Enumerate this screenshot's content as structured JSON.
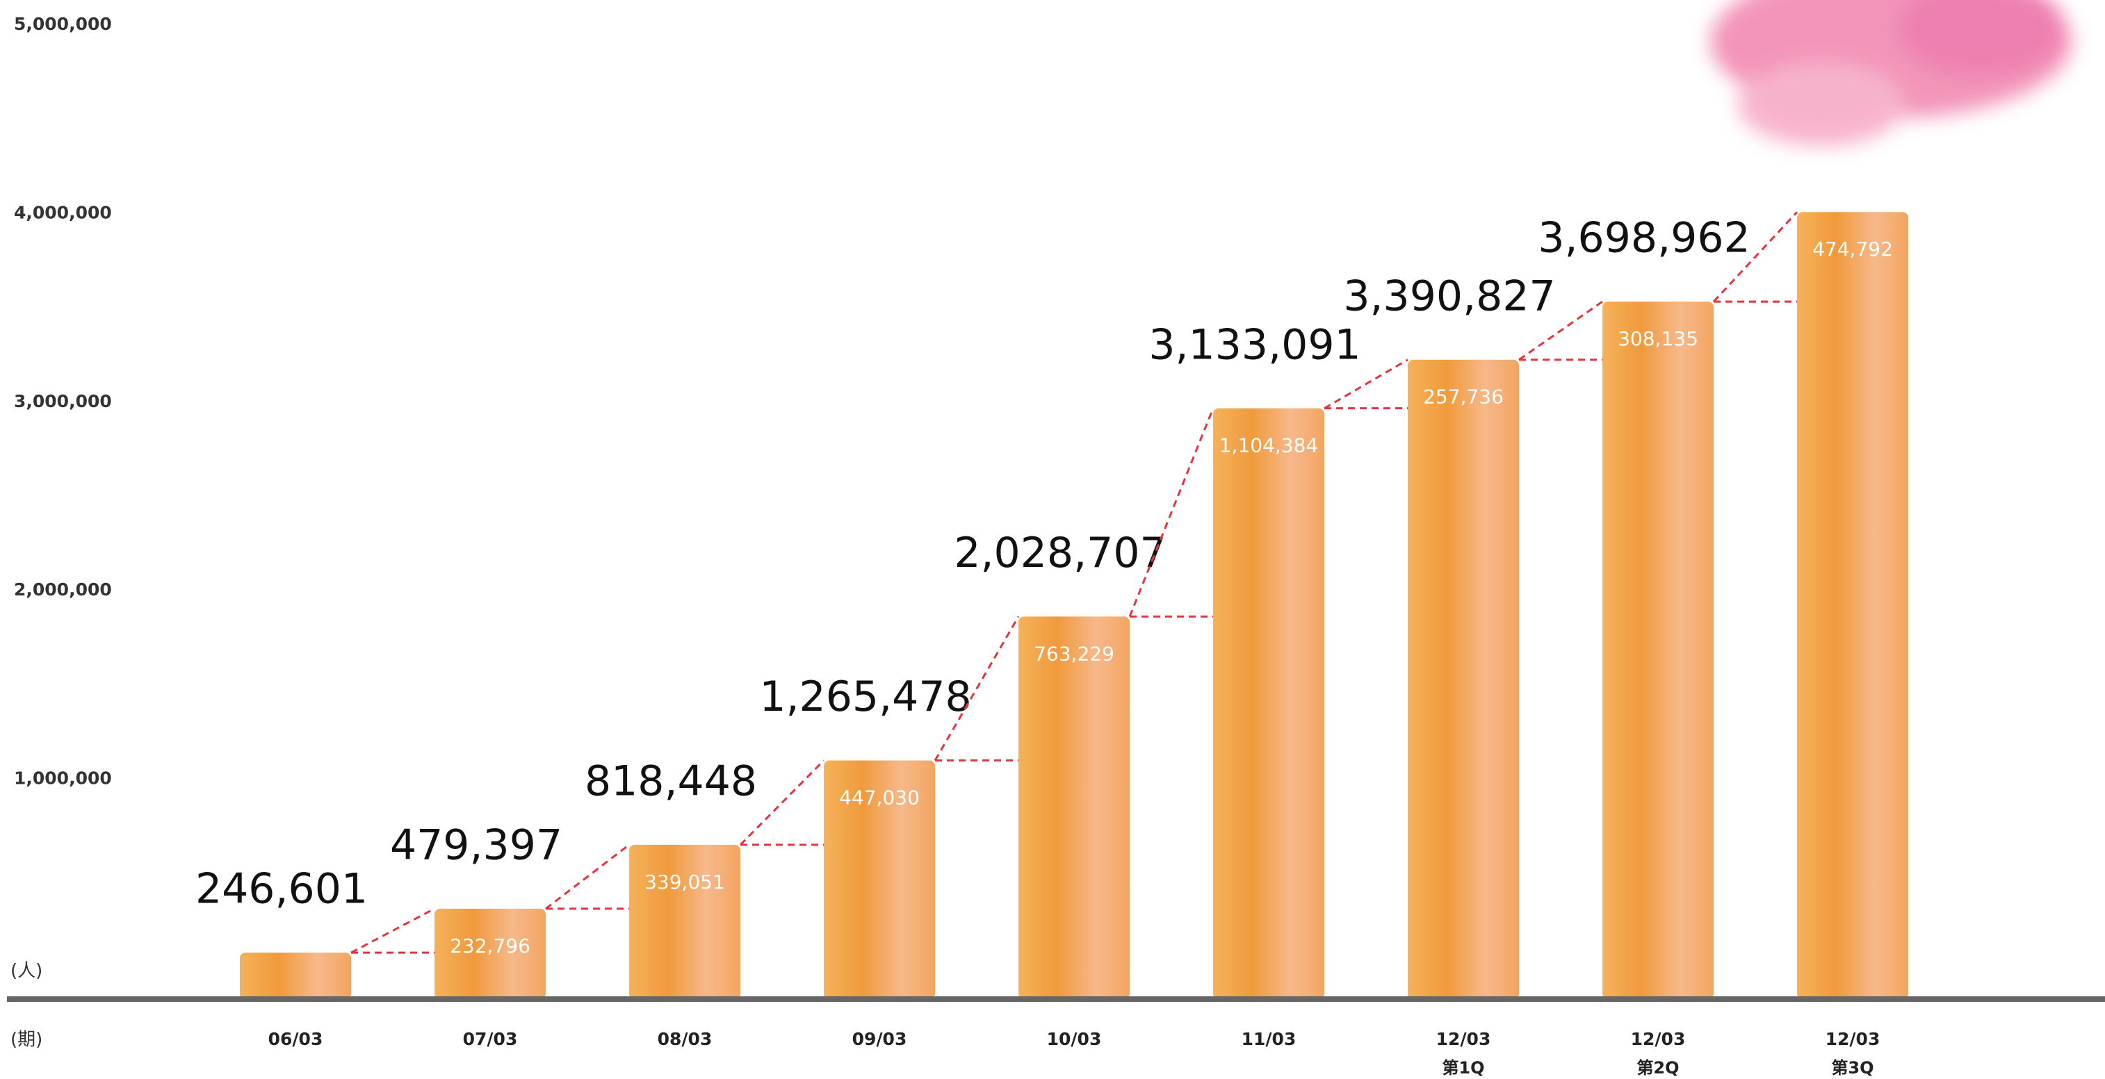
{
  "chart_data": {
    "type": "bar",
    "categories": [
      "06/03",
      "07/03",
      "08/03",
      "09/03",
      "10/03",
      "11/03",
      "12/03",
      "12/03",
      "12/03"
    ],
    "sublabels": [
      null,
      null,
      null,
      null,
      null,
      null,
      "第1Q",
      "第2Q",
      "第3Q"
    ],
    "values": [
      246601,
      479397,
      818448,
      1265478,
      2028707,
      3133091,
      3390827,
      3698962,
      4173754
    ],
    "value_labels": [
      "246,601",
      "479,397",
      "818,448",
      "1,265,478",
      "2,028,707",
      "3,133,091",
      "3,390,827",
      "3,698,962",
      null
    ],
    "increments": [
      null,
      232796,
      339051,
      447030,
      763229,
      1104384,
      257736,
      308135,
      474792
    ],
    "increment_labels": [
      null,
      "232,796",
      "339,051",
      "447,030",
      "763,229",
      "1,104,384",
      "257,736",
      "308,135",
      "474,792"
    ],
    "color": "#f2a24a",
    "connector_color": "#e8323c",
    "ylim": [
      0,
      5000000
    ],
    "yticks": [
      {
        "value": 1000000,
        "label": "1,000,000"
      },
      {
        "value": 2000000,
        "label": "2,000,000"
      },
      {
        "value": 3000000,
        "label": "3,000,000"
      },
      {
        "value": 4000000,
        "label": "4,000,000"
      },
      {
        "value": 5000000,
        "label": "5,000,000"
      }
    ],
    "grid": true,
    "y_unit": "(人)",
    "x_unit": "(期)"
  }
}
